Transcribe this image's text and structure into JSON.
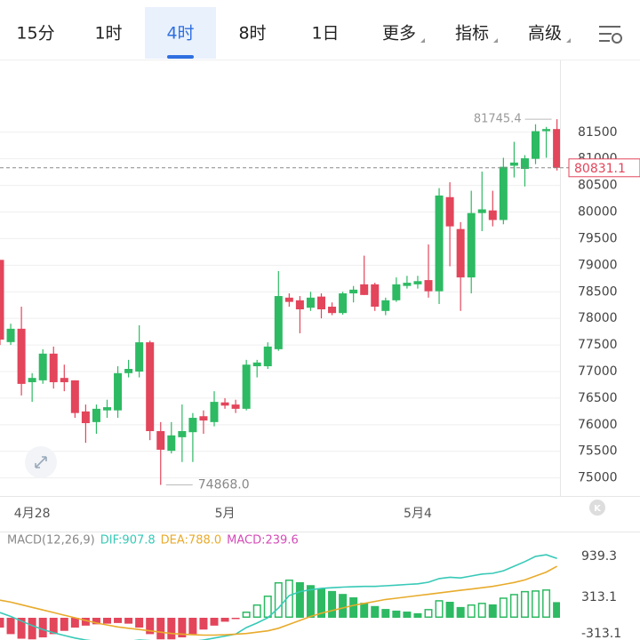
{
  "toolbar": {
    "tabs": [
      {
        "label": "15分"
      },
      {
        "label": "1时"
      },
      {
        "label": "4时"
      },
      {
        "label": "8时"
      },
      {
        "label": "1日"
      },
      {
        "label": "更多",
        "menu": true
      },
      {
        "label": "指标",
        "menu": true
      },
      {
        "label": "高级",
        "menu": true
      }
    ],
    "active": 2
  },
  "chart_data": [
    {
      "type": "candlestick",
      "categories": [
        null,
        null,
        null,
        "4月28",
        null,
        null,
        null,
        null,
        null,
        null,
        null,
        null,
        null,
        null,
        null,
        null,
        null,
        null,
        null,
        null,
        null,
        "5月",
        null,
        null,
        null,
        null,
        null,
        null,
        null,
        null,
        null,
        null,
        null,
        null,
        null,
        null,
        null,
        null,
        null,
        "5月4",
        null,
        null,
        null,
        null,
        null,
        null,
        null,
        null,
        null,
        null,
        null,
        null,
        null
      ],
      "open": [
        79100,
        77554,
        77805,
        76800,
        76835,
        77337,
        76880,
        76835,
        76250,
        76050,
        76270,
        76270,
        76970,
        77000,
        77550,
        75880,
        75510,
        75765,
        75860,
        76160,
        76050,
        76420,
        76380,
        76300,
        77100,
        77100,
        77420,
        78390,
        78340,
        78200,
        78410,
        78220,
        78100,
        78470,
        78640,
        78640,
        78140,
        78340,
        78610,
        78640,
        78720,
        78510,
        80280,
        79680,
        78770,
        79980,
        80030,
        79850,
        80870,
        80810,
        81000,
        81520,
        81560
      ],
      "high": [
        79100,
        77900,
        78220,
        76970,
        77420,
        77470,
        77130,
        76835,
        76380,
        76380,
        76470,
        77100,
        77220,
        77870,
        77580,
        76050,
        76050,
        76380,
        76220,
        76270,
        76630,
        76500,
        76470,
        77220,
        77220,
        77550,
        78890,
        78470,
        78420,
        78500,
        78470,
        78300,
        78500,
        78610,
        79180,
        78670,
        78390,
        78770,
        78800,
        78800,
        79390,
        80450,
        80560,
        79810,
        80400,
        80760,
        80400,
        81020,
        81320,
        81070,
        81650,
        81600,
        81745.4
      ],
      "low": [
        77500,
        77500,
        76550,
        76430,
        76770,
        76680,
        76630,
        76130,
        75660,
        75830,
        76130,
        76130,
        76890,
        76890,
        75710,
        74868,
        75460,
        75300,
        75300,
        75830,
        75970,
        76300,
        76220,
        76270,
        76890,
        77050,
        77390,
        78220,
        77720,
        78140,
        78000,
        78060,
        78070,
        78300,
        78440,
        78140,
        78060,
        78310,
        78560,
        78560,
        78390,
        78270,
        78980,
        78140,
        78470,
        79640,
        79730,
        79770,
        80650,
        80480,
        80900,
        81020,
        80780
      ],
      "close": [
        77600,
        77805,
        76768,
        76880,
        77337,
        76800,
        76800,
        76220,
        76030,
        76300,
        76330,
        76970,
        77050,
        77550,
        75880,
        75530,
        75800,
        75880,
        76130,
        76080,
        76430,
        76360,
        76300,
        77130,
        77170,
        77470,
        78420,
        78310,
        78170,
        78390,
        78170,
        78100,
        78470,
        78540,
        78440,
        78220,
        78340,
        78640,
        78670,
        78700,
        78510,
        80310,
        79730,
        78770,
        79980,
        80050,
        79850,
        80850,
        80930,
        81010,
        81520,
        81560,
        80831.1
      ],
      "up_color": "#2dba63",
      "down_color": "#e3455b",
      "ylim": [
        74660,
        82850
      ],
      "yticks": [
        75000,
        75500,
        76000,
        76500,
        77000,
        77500,
        78000,
        78500,
        79000,
        79500,
        80000,
        80500,
        81000,
        81500
      ],
      "grid": true,
      "high_mark": {
        "value": 81745.4,
        "label": "81745.4"
      },
      "low_mark": {
        "value": 74868.0,
        "label": "74868.0"
      },
      "last_price": {
        "value": 80831.1,
        "label": "80831.1"
      }
    },
    {
      "type": "macd",
      "title": "MACD(12,26,9)",
      "series": [
        {
          "name": "DIF:907.8",
          "color": "#38c9b7",
          "kind": "line",
          "values": [
            80,
            20,
            -50,
            -120,
            -180,
            -230,
            -270,
            -310,
            -340,
            -360,
            -370,
            -370,
            -360,
            -340,
            -350,
            -380,
            -390,
            -380,
            -360,
            -340,
            -310,
            -280,
            -250,
            -150,
            -80,
            0,
            150,
            340,
            400,
            430,
            450,
            460,
            470,
            475,
            480,
            480,
            490,
            500,
            510,
            520,
            545,
            600,
            620,
            610,
            640,
            670,
            680,
            720,
            790,
            860,
            940,
            965,
            907.8
          ]
        },
        {
          "name": "DEA:788.0",
          "color": "#e8ab2b",
          "kind": "line",
          "values": [
            270,
            240,
            200,
            160,
            120,
            80,
            40,
            0,
            -40,
            -80,
            -110,
            -140,
            -160,
            -180,
            -200,
            -220,
            -240,
            -250,
            -260,
            -265,
            -265,
            -260,
            -250,
            -240,
            -220,
            -200,
            -160,
            -100,
            -40,
            20,
            70,
            110,
            150,
            190,
            220,
            250,
            280,
            300,
            320,
            340,
            360,
            380,
            400,
            420,
            440,
            460,
            480,
            510,
            540,
            580,
            640,
            700,
            788
          ]
        },
        {
          "name": "MACD:239.6",
          "color": "#d54bb8",
          "kind": "bar",
          "up_color": "#2dba63",
          "down_color": "#e3455b",
          "values": [
            -150,
            -250,
            -320,
            -330,
            -300,
            -250,
            -200,
            -150,
            -120,
            -100,
            -90,
            -80,
            -90,
            -150,
            -250,
            -330,
            -330,
            -300,
            -250,
            -180,
            -120,
            -60,
            -20,
            95,
            205,
            340,
            545,
            585,
            545,
            500,
            450,
            410,
            365,
            313,
            230,
            180,
            135,
            110,
            95,
            70,
            135,
            270,
            245,
            165,
            205,
            230,
            205,
            310,
            365,
            410,
            420,
            435,
            239.6
          ]
        }
      ],
      "ylim": [
        -340,
        1320
      ],
      "yticks": [
        939.3,
        313.1,
        -313.1
      ]
    }
  ]
}
